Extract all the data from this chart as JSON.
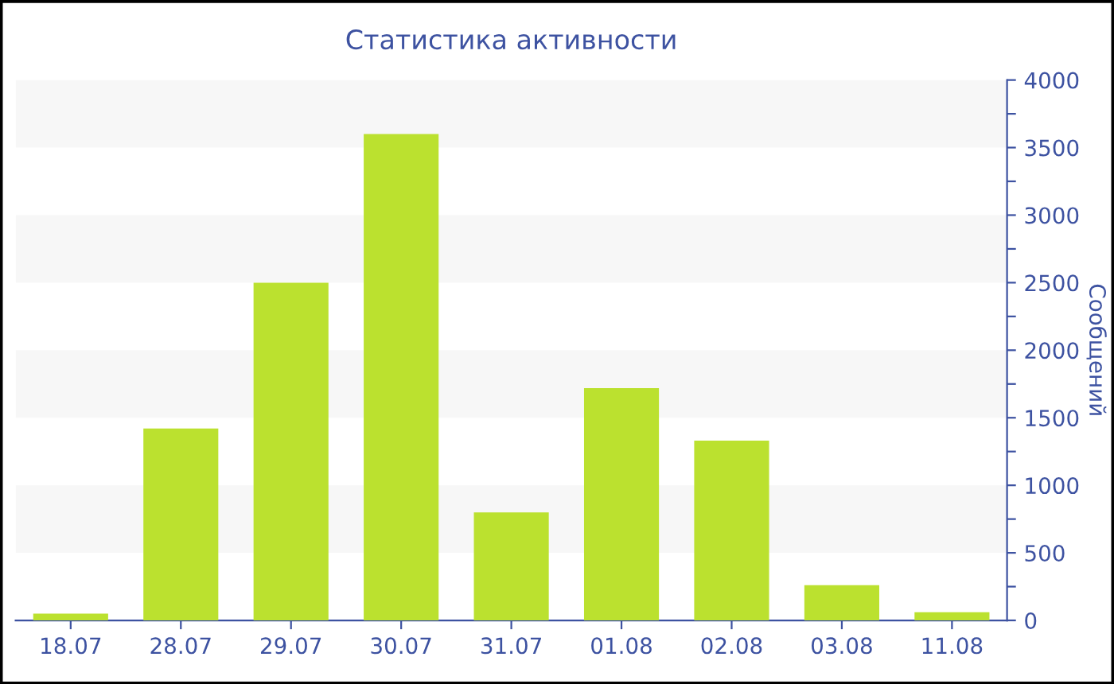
{
  "chart_data": {
    "type": "bar",
    "title": "Статистика активности",
    "ylabel": "Сообщений",
    "categories": [
      "18.07",
      "28.07",
      "29.07",
      "30.07",
      "31.07",
      "01.08",
      "02.08",
      "03.08",
      "11.08"
    ],
    "values": [
      50,
      1420,
      2500,
      3600,
      800,
      1720,
      1330,
      260,
      60
    ],
    "color": "#bbe12f",
    "ylim": [
      0,
      4000
    ],
    "yticks": [
      0,
      {
        "value": 250,
        "label": null
      },
      500,
      {
        "value": 750,
        "label": null
      },
      1000,
      {
        "value": 1250,
        "label": null
      },
      1500,
      {
        "value": 1750,
        "label": null
      },
      2000,
      {
        "value": 2250,
        "label": null
      },
      2500,
      {
        "value": 2750,
        "label": null
      },
      3000,
      {
        "value": 3250,
        "label": null
      },
      3500,
      {
        "value": 3750,
        "label": null
      },
      4000
    ],
    "bands": [
      {
        "axis": "y",
        "from": 500,
        "to": 1000,
        "color": "#f7f7f7"
      },
      {
        "axis": "y",
        "from": 1500,
        "to": 2000,
        "color": "#f7f7f7"
      },
      {
        "axis": "y",
        "from": 2500,
        "to": 3000,
        "color": "#f7f7f7"
      },
      {
        "axis": "y",
        "from": 3500,
        "to": 4000,
        "color": "#f7f7f7"
      }
    ]
  }
}
